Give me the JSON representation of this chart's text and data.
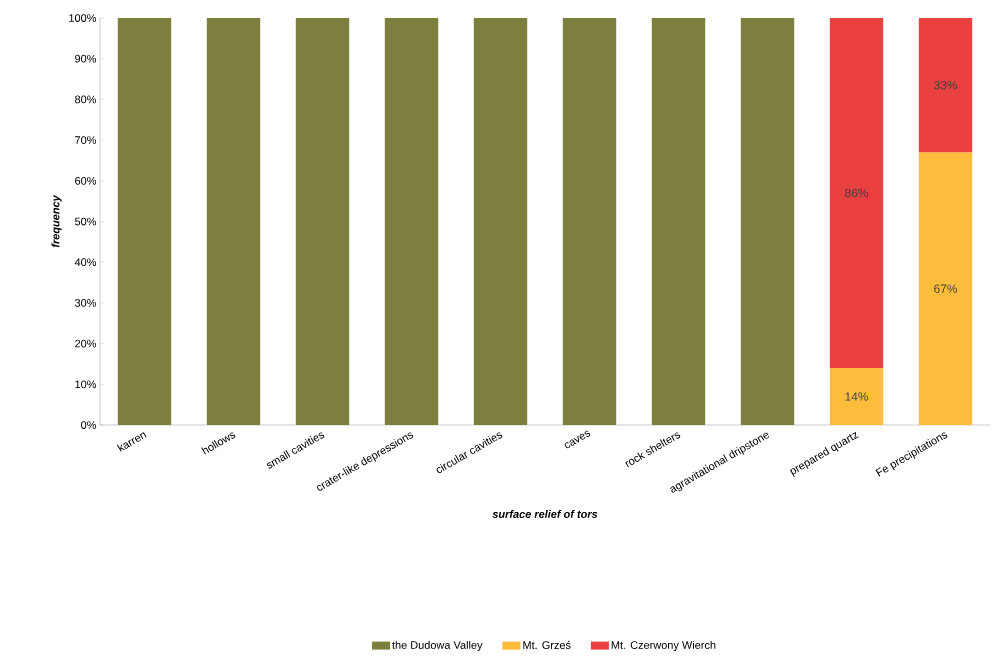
{
  "chart_data": {
    "type": "bar",
    "stacked": true,
    "xlabel": "surface relief of tors",
    "ylabel": "frequency",
    "categories": [
      "karren",
      "hollows",
      "small cavities",
      "crater-like depressions",
      "circular cavities",
      "caves",
      "rock shelters",
      "agravitational dripstone",
      "prepared quartz",
      "Fe precipitations"
    ],
    "series": [
      {
        "name": "the Dudowa Valley",
        "color": "#7c7f3e",
        "values": [
          100,
          100,
          100,
          100,
          100,
          100,
          100,
          100,
          null,
          null
        ]
      },
      {
        "name": "Mt. Grześ",
        "color": "#fbbd3b",
        "values": [
          null,
          null,
          null,
          null,
          null,
          null,
          null,
          null,
          14,
          67
        ],
        "value_labels": [
          null,
          null,
          null,
          null,
          null,
          null,
          null,
          null,
          "14%",
          "67%"
        ]
      },
      {
        "name": "Mt. Czerwony Wierch",
        "color": "#ea4040",
        "values": [
          null,
          null,
          null,
          null,
          null,
          null,
          null,
          null,
          86,
          33
        ],
        "value_labels": [
          null,
          null,
          null,
          null,
          null,
          null,
          null,
          null,
          "86%",
          "33%"
        ]
      }
    ],
    "ylim": [
      0,
      100
    ],
    "yticks": [
      {
        "value": 0,
        "label": "0%"
      },
      {
        "value": 10,
        "label": "10%"
      },
      {
        "value": 20,
        "label": "20%"
      },
      {
        "value": 30,
        "label": "30%"
      },
      {
        "value": 40,
        "label": "40%"
      },
      {
        "value": 50,
        "label": "50%"
      },
      {
        "value": 60,
        "label": "60%"
      },
      {
        "value": 70,
        "label": "70%"
      },
      {
        "value": 80,
        "label": "80%"
      },
      {
        "value": 90,
        "label": "90%"
      },
      {
        "value": 100,
        "label": "100%"
      }
    ],
    "legend": "bottom"
  }
}
